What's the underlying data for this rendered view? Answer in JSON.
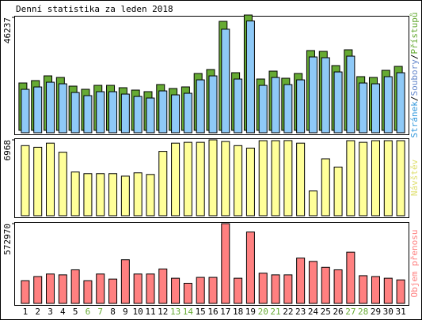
{
  "title": "Denní statistika za leden 2018",
  "categories": [
    "1",
    "2",
    "3",
    "4",
    "5",
    "6",
    "7",
    "8",
    "9",
    "10",
    "11",
    "12",
    "13",
    "14",
    "15",
    "16",
    "17",
    "18",
    "19",
    "20",
    "21",
    "22",
    "23",
    "24",
    "25",
    "26",
    "27",
    "28",
    "29",
    "30",
    "31"
  ],
  "category_colors": [
    "#000000",
    "#000000",
    "#000000",
    "#000000",
    "#000000",
    "#66aa33",
    "#66aa33",
    "#000000",
    "#000000",
    "#000000",
    "#000000",
    "#000000",
    "#66aa33",
    "#66aa33",
    "#000000",
    "#000000",
    "#000000",
    "#000000",
    "#000000",
    "#66aa33",
    "#66aa33",
    "#000000",
    "#000000",
    "#000000",
    "#000000",
    "#000000",
    "#66aa33",
    "#66aa33",
    "#000000",
    "#000000",
    "#000000"
  ],
  "chart_data": [
    {
      "type": "bar",
      "ylim": [
        0,
        46237
      ],
      "yticks": [
        46237
      ],
      "legend": [
        {
          "name": "Stránek",
          "color": "#3399dd"
        },
        {
          "name": "Soubory",
          "color": "#6688cc"
        },
        {
          "name": "Přístupů",
          "color": "#66aa33"
        }
      ],
      "legend_separator": "/",
      "series": [
        {
          "color": "#66aa33",
          "values": [
            19000,
            19950,
            21850,
            21220,
            17735,
            16470,
            18050,
            18050,
            17100,
            16150,
            15520,
            18370,
            16785,
            17420,
            22800,
            24385,
            43700,
            23120,
            46237,
            20585,
            23750,
            20900,
            22800,
            31985,
            31670,
            25970,
            32300,
            21535,
            21220,
            24070,
            25650
          ]
        },
        {
          "color": "#8ec9f7",
          "values": [
            17400,
            18350,
            20250,
            19620,
            16135,
            14870,
            16450,
            16450,
            15500,
            14550,
            13920,
            16770,
            15185,
            15820,
            21200,
            22785,
            41500,
            21520,
            44800,
            18985,
            22150,
            19300,
            21200,
            30385,
            30070,
            24370,
            30700,
            19935,
            19620,
            22470,
            24050
          ]
        }
      ]
    },
    {
      "type": "bar",
      "ylim": [
        0,
        6968
      ],
      "yticks": [
        6968
      ],
      "legend": [
        {
          "name": "Návštěv",
          "color": "#e0e070"
        }
      ],
      "series": [
        {
          "color": "#ffff99",
          "values": [
            6438,
            6286,
            6665,
            5832,
            4014,
            3863,
            3863,
            3863,
            3635,
            3938,
            3787,
            5908,
            6665,
            6741,
            6741,
            6968,
            6816,
            6438,
            6211,
            6892,
            6892,
            6900,
            6665,
            2272,
            5226,
            4469,
            6892,
            6741,
            6892,
            6892,
            6892
          ]
        }
      ]
    },
    {
      "type": "bar",
      "ylim": [
        0,
        572970
      ],
      "yticks": [
        572970
      ],
      "legend": [
        {
          "name": "Objem přenosu",
          "color": "#ff8080"
        }
      ],
      "series": [
        {
          "color": "#ff8080",
          "values": [
            162800,
            193000,
            211100,
            205000,
            241200,
            162800,
            211100,
            174900,
            313600,
            211100,
            211100,
            247300,
            180900,
            144700,
            187000,
            187000,
            572970,
            180900,
            512600,
            217100,
            205000,
            205000,
            325700,
            301600,
            259300,
            241200,
            367900,
            199000,
            193000,
            180900,
            168900
          ]
        }
      ]
    }
  ]
}
